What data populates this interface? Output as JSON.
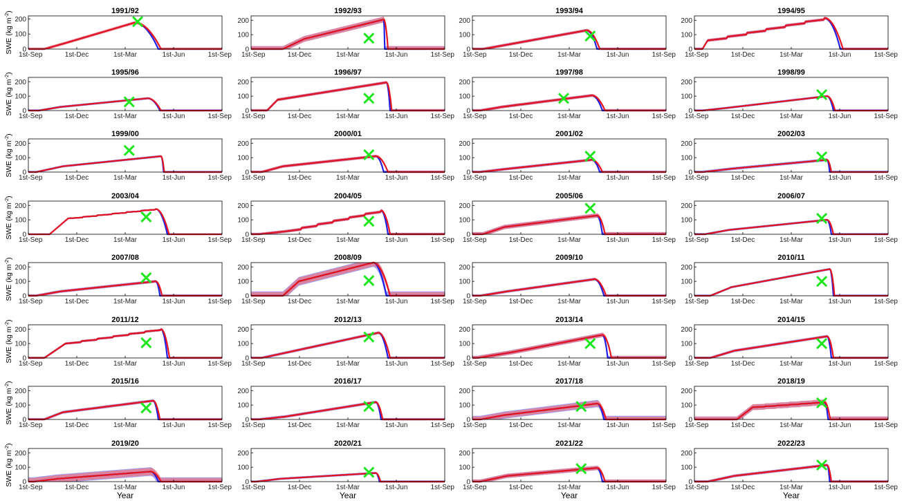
{
  "figure": {
    "ylabel_prefix": "SWE (kg m",
    "ylabel_sup": "-2",
    "ylabel_suffix": ")",
    "xlabel": "Year",
    "x_ticks": [
      "1st-Sep",
      "1st-Dec",
      "1st-Mar",
      "1st-Jun",
      "1st-Sep"
    ],
    "y_ticks": [
      0,
      100,
      200
    ],
    "colors": {
      "series_a": "#1f1fe6",
      "series_a_band": "#7f7ff0",
      "series_b": "#e6141e",
      "series_b_band": "#f07a80",
      "observation": "#1ee61e",
      "axis": "#000000"
    }
  },
  "chart_data": [
    {
      "type": "area",
      "title": "1991/92",
      "x_unit": "day of season (0 = 1st-Sep)",
      "ylim": [
        0,
        220
      ],
      "grid": false,
      "peak": [
        200,
        175
      ],
      "base": [
        30,
        40
      ],
      "rise": 40,
      "accum": "linear",
      "a_melt": 245,
      "b_melt": 250,
      "band_a": 0,
      "band_b": 10,
      "obs": {
        "day": 206,
        "swe": 182
      }
    },
    {
      "type": "area",
      "title": "1992/93",
      "x_unit": "day of season (0 = 1st-Sep)",
      "ylim": [
        0,
        230
      ],
      "grid": false,
      "peak": [
        250,
        205
      ],
      "base": [
        60,
        70
      ],
      "rise": 40,
      "accum": "linear",
      "a_melt": 252,
      "b_melt": 258,
      "band_a": 20,
      "band_b": 20,
      "obs": {
        "day": 222,
        "swe": 75
      }
    },
    {
      "type": "area",
      "title": "1993/94",
      "x_unit": "day of season (0 = 1st-Sep)",
      "ylim": [
        0,
        230
      ],
      "grid": false,
      "peak": [
        215,
        130
      ],
      "base": [
        20,
        30
      ],
      "rise": 45,
      "accum": "linear",
      "a_melt": 235,
      "b_melt": 240,
      "band_a": 10,
      "band_b": 10,
      "obs": {
        "day": 222,
        "swe": 90
      }
    },
    {
      "type": "area",
      "title": "1994/95",
      "x_unit": "day of season (0 = 1st-Sep)",
      "ylim": [
        0,
        230
      ],
      "grid": false,
      "peak": [
        245,
        215
      ],
      "base": [
        15,
        60
      ],
      "rise": 10,
      "accum": "step",
      "a_melt": 275,
      "b_melt": 280,
      "band_a": 10,
      "band_b": 10,
      "obs": null
    },
    {
      "type": "area",
      "title": "1995/96",
      "x_unit": "day of season (0 = 1st-Sep)",
      "ylim": [
        0,
        230
      ],
      "grid": false,
      "peak": [
        225,
        85
      ],
      "base": [
        20,
        25
      ],
      "rise": 40,
      "accum": "linear",
      "a_melt": 248,
      "b_melt": 250,
      "band_a": 8,
      "band_b": 5,
      "obs": {
        "day": 190,
        "swe": 60
      }
    },
    {
      "type": "area",
      "title": "1996/97",
      "x_unit": "day of season (0 = 1st-Sep)",
      "ylim": [
        0,
        230
      ],
      "grid": false,
      "peak": [
        255,
        195
      ],
      "base": [
        30,
        75
      ],
      "rise": 20,
      "accum": "linear",
      "a_melt": 262,
      "b_melt": 265,
      "band_a": 10,
      "band_b": 10,
      "obs": {
        "day": 222,
        "swe": 85
      }
    },
    {
      "type": "area",
      "title": "1997/98",
      "x_unit": "day of season (0 = 1st-Sep)",
      "ylim": [
        0,
        230
      ],
      "grid": false,
      "peak": [
        225,
        105
      ],
      "base": [
        15,
        25
      ],
      "rise": 40,
      "accum": "linear",
      "a_melt": 245,
      "b_melt": 250,
      "band_a": 10,
      "band_b": 10,
      "obs": {
        "day": 172,
        "swe": 85
      }
    },
    {
      "type": "area",
      "title": "1998/99",
      "x_unit": "day of season (0 = 1st-Sep)",
      "ylim": [
        0,
        230
      ],
      "grid": false,
      "peak": [
        250,
        100
      ],
      "base": [
        15,
        20
      ],
      "rise": 50,
      "accum": "linear",
      "a_melt": 262,
      "b_melt": 265,
      "band_a": 8,
      "band_b": 5,
      "obs": {
        "day": 240,
        "swe": 110
      }
    },
    {
      "type": "area",
      "title": "1999/00",
      "x_unit": "day of season (0 = 1st-Sep)",
      "ylim": [
        0,
        230
      ],
      "grid": false,
      "peak": [
        250,
        110
      ],
      "base": [
        15,
        40
      ],
      "rise": 50,
      "accum": "linear",
      "a_melt": 255,
      "b_melt": 256,
      "band_a": 8,
      "band_b": 5,
      "obs": {
        "day": 190,
        "swe": 150
      }
    },
    {
      "type": "area",
      "title": "2000/01",
      "x_unit": "day of season (0 = 1st-Sep)",
      "ylim": [
        0,
        230
      ],
      "grid": false,
      "peak": [
        235,
        110
      ],
      "base": [
        20,
        40
      ],
      "rise": 40,
      "accum": "linear",
      "a_melt": 250,
      "b_melt": 258,
      "band_a": 10,
      "band_b": 10,
      "obs": {
        "day": 222,
        "swe": 120
      }
    },
    {
      "type": "area",
      "title": "2001/02",
      "x_unit": "day of season (0 = 1st-Sep)",
      "ylim": [
        0,
        230
      ],
      "grid": false,
      "peak": [
        225,
        85
      ],
      "base": [
        15,
        20
      ],
      "rise": 45,
      "accum": "linear",
      "a_melt": 240,
      "b_melt": 245,
      "band_a": 10,
      "band_b": 8,
      "obs": {
        "day": 222,
        "swe": 110
      }
    },
    {
      "type": "area",
      "title": "2002/03",
      "x_unit": "day of season (0 = 1st-Sep)",
      "ylim": [
        0,
        230
      ],
      "grid": false,
      "peak": [
        250,
        85
      ],
      "base": [
        15,
        25
      ],
      "rise": 60,
      "accum": "linear",
      "a_melt": 255,
      "b_melt": 258,
      "band_a": 10,
      "band_b": 5,
      "obs": {
        "day": 240,
        "swe": 105
      }
    },
    {
      "type": "area",
      "title": "2003/04",
      "x_unit": "day of season (0 = 1st-Sep)",
      "ylim": [
        0,
        230
      ],
      "grid": false,
      "peak": [
        240,
        175
      ],
      "base": [
        40,
        110
      ],
      "rise": 35,
      "accum": "step",
      "a_melt": 262,
      "b_melt": 265,
      "band_a": 5,
      "band_b": 5,
      "obs": {
        "day": 222,
        "swe": 120
      }
    },
    {
      "type": "area",
      "title": "2004/05",
      "x_unit": "day of season (0 = 1st-Sep)",
      "ylim": [
        0,
        230
      ],
      "grid": false,
      "peak": [
        245,
        165
      ],
      "base": [
        15,
        20
      ],
      "rise": 50,
      "accum": "step",
      "a_melt": 258,
      "b_melt": 262,
      "band_a": 10,
      "band_b": 10,
      "obs": {
        "day": 222,
        "swe": 90
      }
    },
    {
      "type": "area",
      "title": "2005/06",
      "x_unit": "day of season (0 = 1st-Sep)",
      "ylim": [
        0,
        230
      ],
      "grid": false,
      "peak": [
        235,
        130
      ],
      "base": [
        20,
        50
      ],
      "rise": 40,
      "accum": "linear",
      "a_melt": 245,
      "b_melt": 250,
      "band_a": 15,
      "band_b": 15,
      "obs": {
        "day": 222,
        "swe": 180
      }
    },
    {
      "type": "area",
      "title": "2006/07",
      "x_unit": "day of season (0 = 1st-Sep)",
      "ylim": [
        0,
        230
      ],
      "grid": false,
      "peak": [
        250,
        100
      ],
      "base": [
        20,
        30
      ],
      "rise": 45,
      "accum": "linear",
      "a_melt": 258,
      "b_melt": 262,
      "band_a": 8,
      "band_b": 5,
      "obs": {
        "day": 240,
        "swe": 110
      }
    },
    {
      "type": "area",
      "title": "2007/08",
      "x_unit": "day of season (0 = 1st-Sep)",
      "ylim": [
        0,
        230
      ],
      "grid": false,
      "peak": [
        240,
        100
      ],
      "base": [
        15,
        30
      ],
      "rise": 45,
      "accum": "linear",
      "a_melt": 248,
      "b_melt": 252,
      "band_a": 10,
      "band_b": 8,
      "obs": {
        "day": 222,
        "swe": 125
      }
    },
    {
      "type": "area",
      "title": "2008/09",
      "x_unit": "day of season (0 = 1st-Sep)",
      "ylim": [
        0,
        230
      ],
      "grid": false,
      "peak": [
        230,
        230
      ],
      "base": [
        60,
        100
      ],
      "rise": 30,
      "accum": "linear",
      "a_melt": 255,
      "b_melt": 262,
      "band_a": 30,
      "band_b": 25,
      "obs": {
        "day": 222,
        "swe": 105
      }
    },
    {
      "type": "area",
      "title": "2009/10",
      "x_unit": "day of season (0 = 1st-Sep)",
      "ylim": [
        0,
        230
      ],
      "grid": false,
      "peak": [
        230,
        115
      ],
      "base": [
        15,
        30
      ],
      "rise": 50,
      "accum": "linear",
      "a_melt": 248,
      "b_melt": 252,
      "band_a": 10,
      "band_b": 8,
      "obs": null
    },
    {
      "type": "area",
      "title": "2010/11",
      "x_unit": "day of season (0 = 1st-Sep)",
      "ylim": [
        0,
        230
      ],
      "grid": false,
      "peak": [
        255,
        185
      ],
      "base": [
        30,
        60
      ],
      "rise": 40,
      "accum": "linear",
      "a_melt": 262,
      "b_melt": 264,
      "band_a": 8,
      "band_b": 5,
      "obs": {
        "day": 240,
        "swe": 100
      }
    },
    {
      "type": "area",
      "title": "2011/12",
      "x_unit": "day of season (0 = 1st-Sep)",
      "ylim": [
        0,
        230
      ],
      "grid": false,
      "peak": [
        250,
        200
      ],
      "base": [
        30,
        100
      ],
      "rise": 40,
      "accum": "step",
      "a_melt": 262,
      "b_melt": 266,
      "band_a": 8,
      "band_b": 8,
      "obs": {
        "day": 222,
        "swe": 105
      }
    },
    {
      "type": "area",
      "title": "2012/13",
      "x_unit": "day of season (0 = 1st-Sep)",
      "ylim": [
        0,
        230
      ],
      "grid": false,
      "peak": [
        240,
        175
      ],
      "base": [
        20,
        40
      ],
      "rise": 50,
      "accum": "linear",
      "a_melt": 258,
      "b_melt": 262,
      "band_a": 10,
      "band_b": 8,
      "obs": {
        "day": 222,
        "swe": 145
      }
    },
    {
      "type": "area",
      "title": "2013/14",
      "x_unit": "day of season (0 = 1st-Sep)",
      "ylim": [
        0,
        230
      ],
      "grid": false,
      "peak": [
        245,
        160
      ],
      "base": [
        10,
        40
      ],
      "rise": 65,
      "accum": "linear",
      "a_melt": 255,
      "b_melt": 262,
      "band_a": 15,
      "band_b": 15,
      "obs": {
        "day": 222,
        "swe": 100
      }
    },
    {
      "type": "area",
      "title": "2014/15",
      "x_unit": "day of season (0 = 1st-Sep)",
      "ylim": [
        0,
        230
      ],
      "grid": false,
      "peak": [
        250,
        150
      ],
      "base": [
        30,
        50
      ],
      "rise": 45,
      "accum": "linear",
      "a_melt": 258,
      "b_melt": 262,
      "band_a": 10,
      "band_b": 8,
      "obs": {
        "day": 240,
        "swe": 100
      }
    },
    {
      "type": "area",
      "title": "2015/16",
      "x_unit": "day of season (0 = 1st-Sep)",
      "ylim": [
        0,
        230
      ],
      "grid": false,
      "peak": [
        235,
        130
      ],
      "base": [
        30,
        50
      ],
      "rise": 35,
      "accum": "linear",
      "a_melt": 245,
      "b_melt": 248,
      "band_a": 10,
      "band_b": 8,
      "obs": {
        "day": 222,
        "swe": 80
      }
    },
    {
      "type": "area",
      "title": "2016/17",
      "x_unit": "day of season (0 = 1st-Sep)",
      "ylim": [
        0,
        230
      ],
      "grid": false,
      "peak": [
        235,
        120
      ],
      "base": [
        15,
        20
      ],
      "rise": 50,
      "accum": "linear",
      "a_melt": 245,
      "b_melt": 248,
      "band_a": 10,
      "band_b": 8,
      "obs": {
        "day": 222,
        "swe": 90
      }
    },
    {
      "type": "area",
      "title": "2017/18",
      "x_unit": "day of season (0 = 1st-Sep)",
      "ylim": [
        0,
        230
      ],
      "grid": false,
      "peak": [
        235,
        110
      ],
      "base": [
        15,
        30
      ],
      "rise": 45,
      "accum": "linear",
      "a_melt": 248,
      "b_melt": 252,
      "band_a": 25,
      "band_b": 20,
      "obs": {
        "day": 205,
        "swe": 90
      }
    },
    {
      "type": "area",
      "title": "2018/19",
      "x_unit": "day of season (0 = 1st-Sep)",
      "ylim": [
        0,
        230
      ],
      "grid": false,
      "peak": [
        245,
        120
      ],
      "base": [
        80,
        85
      ],
      "rise": 30,
      "accum": "step",
      "a_melt": 252,
      "b_melt": 256,
      "band_a": 20,
      "band_b": 20,
      "obs": {
        "day": 240,
        "swe": 115
      }
    },
    {
      "type": "area",
      "title": "2019/20",
      "x_unit": "day of season (0 = 1st-Sep)",
      "ylim": [
        0,
        230
      ],
      "grid": false,
      "peak": [
        230,
        70
      ],
      "base": [
        10,
        20
      ],
      "rise": 45,
      "accum": "linear",
      "a_melt": 245,
      "b_melt": 250,
      "band_a": 30,
      "band_b": 25,
      "obs": null
    },
    {
      "type": "area",
      "title": "2020/21",
      "x_unit": "day of season (0 = 1st-Sep)",
      "ylim": [
        0,
        230
      ],
      "grid": false,
      "peak": [
        235,
        60
      ],
      "base": [
        10,
        20
      ],
      "rise": 45,
      "accum": "linear",
      "a_melt": 242,
      "b_melt": 244,
      "band_a": 8,
      "band_b": 5,
      "obs": {
        "day": 222,
        "swe": 65
      }
    },
    {
      "type": "area",
      "title": "2021/22",
      "x_unit": "day of season (0 = 1st-Sep)",
      "ylim": [
        0,
        230
      ],
      "grid": false,
      "peak": [
        235,
        95
      ],
      "base": [
        15,
        40
      ],
      "rise": 50,
      "accum": "linear",
      "a_melt": 245,
      "b_melt": 250,
      "band_a": 15,
      "band_b": 15,
      "obs": {
        "day": 205,
        "swe": 90
      }
    },
    {
      "type": "area",
      "title": "2022/23",
      "x_unit": "day of season (0 = 1st-Sep)",
      "ylim": [
        0,
        230
      ],
      "grid": false,
      "peak": [
        250,
        115
      ],
      "base": [
        25,
        40
      ],
      "rise": 50,
      "accum": "linear",
      "a_melt": 255,
      "b_melt": 258,
      "band_a": 10,
      "band_b": 8,
      "obs": {
        "day": 240,
        "swe": 115
      }
    }
  ]
}
